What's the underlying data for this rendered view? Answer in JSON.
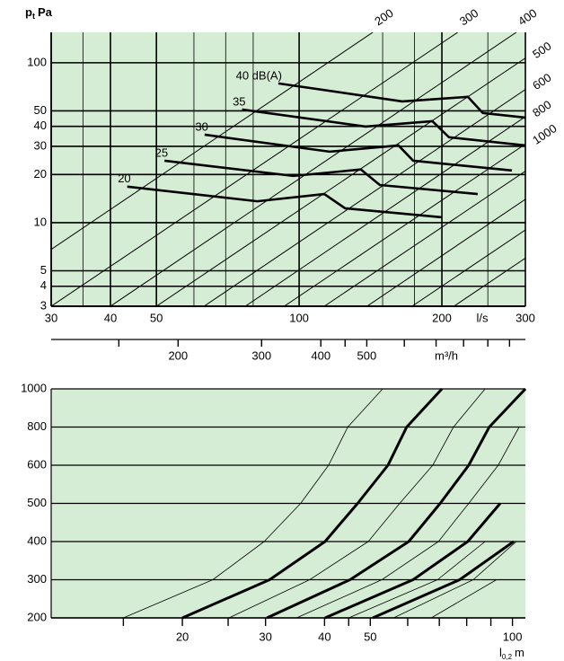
{
  "chart_data": [
    {
      "type": "line",
      "xscale": "log",
      "yscale": "log",
      "ylabel": {
        "main": "p",
        "sub": "t",
        "unit": "Pa"
      },
      "xlabel": "l/s",
      "xlim": [
        30,
        300
      ],
      "ylim": [
        3,
        155
      ],
      "xticks": [
        30,
        40,
        50,
        100,
        200,
        300
      ],
      "yticks": [
        3,
        4,
        5,
        10,
        20,
        30,
        40,
        50,
        100
      ],
      "minor_xgrid": [
        35,
        60,
        70,
        80,
        150,
        175,
        250
      ],
      "grid": true,
      "background": "#d5edd5",
      "line_color": "#000000",
      "series": [
        {
          "name": "40 dB(A)",
          "x": [
            90.4,
            165,
            227,
            244,
            300
          ],
          "values": [
            74.3,
            57.3,
            61.2,
            48.5,
            45.4
          ]
        },
        {
          "name": "35",
          "x": [
            75.8,
            138,
            191,
            207,
            300
          ],
          "values": [
            51.0,
            39.9,
            43.1,
            34.2,
            30.4
          ]
        },
        {
          "name": "30",
          "x": [
            63.2,
            116,
            162,
            174,
            281
          ],
          "values": [
            35.5,
            27.8,
            30.4,
            24.4,
            21.2
          ]
        },
        {
          "name": "25",
          "x": [
            52.0,
            97.2,
            135,
            148,
            238
          ],
          "values": [
            24.4,
            19.6,
            21.5,
            17.2,
            15.1
          ]
        },
        {
          "name": "20",
          "x": [
            43.4,
            81.6,
            113,
            125,
            200
          ],
          "values": [
            16.8,
            13.6,
            15.1,
            12.3,
            10.8
          ]
        }
      ],
      "size_lines": [
        {
          "label": "200",
          "x": [
            30,
            143
          ],
          "values": [
            6.8,
            155
          ]
        },
        {
          "label": "300",
          "x": [
            30,
            216
          ],
          "values": [
            3,
            155
          ]
        },
        {
          "label": "400",
          "x": [
            40,
            287
          ],
          "values": [
            3,
            155
          ]
        },
        {
          "label": "500",
          "x": [
            50,
            300
          ],
          "values": [
            3,
            107
          ]
        },
        {
          "label": "600",
          "x": [
            63,
            300
          ],
          "values": [
            3,
            68
          ]
        },
        {
          "label": "800",
          "x": [
            77,
            300
          ],
          "values": [
            3,
            46
          ]
        },
        {
          "label": "1000",
          "x": [
            93,
            300
          ],
          "values": [
            3,
            31
          ]
        },
        {
          "label": null,
          "x": [
            113,
            300
          ],
          "values": [
            3,
            21
          ]
        },
        {
          "label": null,
          "x": [
            139,
            300
          ],
          "values": [
            3,
            14
          ]
        },
        {
          "label": null,
          "x": [
            173,
            300
          ],
          "values": [
            3,
            9
          ]
        },
        {
          "label": null,
          "x": [
            212,
            300
          ],
          "values": [
            3,
            6
          ]
        }
      ],
      "secondary_axis": {
        "label": "m³/h",
        "lim": [
          108,
          1080
        ],
        "ticks": [
          200,
          300,
          400,
          500
        ],
        "minor_ticks": [
          150,
          450,
          600,
          700,
          800,
          900,
          1000
        ]
      }
    },
    {
      "type": "line",
      "xscale": "log",
      "xlabel": {
        "main": "l",
        "sub": "0,2",
        "unit": "m"
      },
      "xlim": [
        10.55,
        106.5
      ],
      "xticks": [
        20,
        30,
        40,
        50,
        100
      ],
      "minor_xticks": [
        15,
        25,
        45,
        60,
        70,
        80,
        90
      ],
      "categories": [
        200,
        300,
        400,
        500,
        600,
        800,
        1000
      ],
      "grid": true,
      "background": "#d5edd5",
      "line_color": "#000000",
      "series": [
        {
          "line_width": 3,
          "values": [
            20,
            30.6,
            40.1,
            47.0,
            54.5,
            59.7,
            70.9
          ]
        },
        {
          "line_width": 3,
          "values": [
            30.2,
            45.3,
            60.3,
            70.3,
            80.8,
            89.3,
            106.5
          ]
        },
        {
          "line_width": 3,
          "values": [
            40.1,
            61.6,
            80.4,
            94.2,
            null,
            null,
            null
          ]
        },
        {
          "line_width": 3,
          "values": [
            50.6,
            77.3,
            100.6,
            null,
            null,
            null,
            null
          ]
        },
        {
          "line_width": 0.8,
          "values": [
            15,
            23.2,
            29.8,
            35.6,
            40.8,
            44.8,
            53.1
          ]
        },
        {
          "line_width": 0.8,
          "values": [
            25.1,
            37.2,
            49.5,
            57.7,
            67.8,
            75.0,
            87.5
          ]
        },
        {
          "line_width": 0.8,
          "values": [
            34.9,
            52.9,
            69.7,
            80.8,
            93.3,
            103.3,
            null
          ]
        },
        {
          "line_width": 0.8,
          "values": [
            45.0,
            69.4,
            87.5,
            null,
            null,
            null,
            null
          ]
        },
        {
          "line_width": 0.8,
          "values": [
            56.0,
            82.6,
            101.9,
            null,
            null,
            null,
            null
          ]
        },
        {
          "line_width": 0.8,
          "values": [
            67.3,
            92.5,
            null,
            null,
            null,
            null,
            null
          ]
        }
      ]
    }
  ]
}
